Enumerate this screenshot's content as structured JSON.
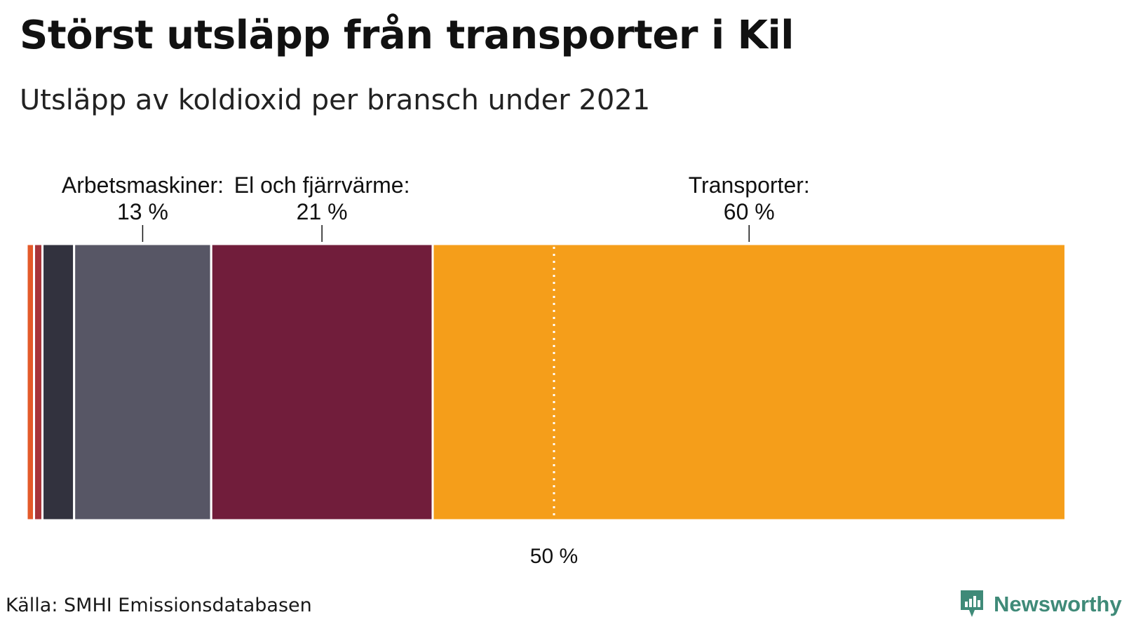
{
  "title": "Störst utsläpp från transporter i Kil",
  "subtitle": "Utsläpp av koldioxid per bransch under 2021",
  "source": "Källa: SMHI Emissionsdatabasen",
  "brand": {
    "name": "Newsworthy",
    "color": "#3f8a78",
    "icon": "newsworthy-logo-icon"
  },
  "chart_data": {
    "type": "stacked-bar-100",
    "orientation": "horizontal",
    "xlim": [
      0,
      100
    ],
    "grid": false,
    "legend": "none",
    "reference_line": {
      "value": 50,
      "label": "50 %",
      "style": "dotted",
      "color": "#ffffff"
    },
    "segments": [
      {
        "value": 0.7,
        "color": "#e45a2a",
        "label": "",
        "value_label": ""
      },
      {
        "value": 0.8,
        "color": "#a8353a",
        "label": "",
        "value_label": ""
      },
      {
        "value": 3.0,
        "color": "#32323e",
        "label": "",
        "value_label": ""
      },
      {
        "value": 13,
        "color": "#575665",
        "label": "Arbetsmaskiner:",
        "value_label": "13 %"
      },
      {
        "value": 21,
        "color": "#711d3b",
        "label": "El och fjärrvärme:",
        "value_label": "21 %"
      },
      {
        "value": 60,
        "color": "#f59e1a",
        "label": "Transporter:",
        "value_label": "60 %"
      }
    ]
  }
}
